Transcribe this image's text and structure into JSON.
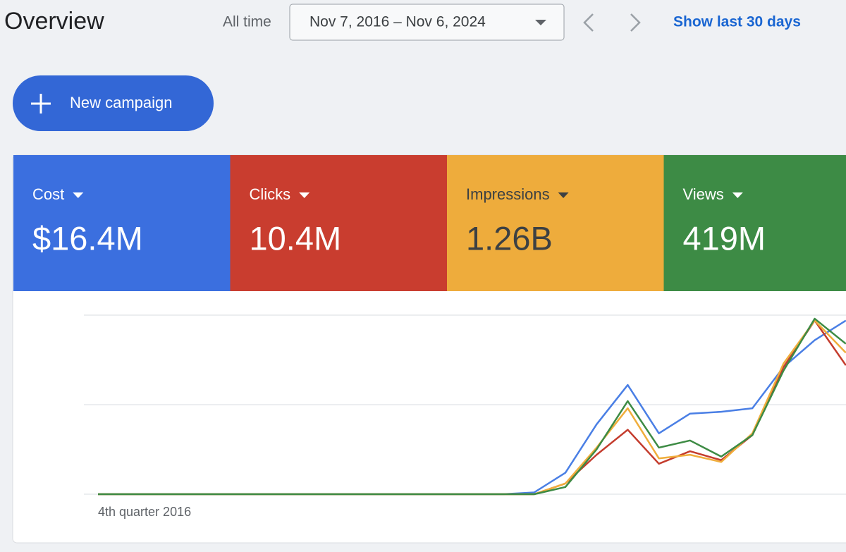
{
  "header": {
    "title": "Overview",
    "range_label": "All time",
    "date_range": "Nov 7, 2016 – Nov 6, 2024",
    "link": "Show last 30 days"
  },
  "button": {
    "label": "New campaign"
  },
  "chart_data": {
    "type": "line",
    "categories": [
      "4th quarter 2016",
      null,
      null,
      null,
      null,
      null,
      null,
      null,
      null,
      null,
      null,
      null,
      null,
      null,
      null,
      null,
      null,
      null,
      null,
      null,
      null,
      null,
      null,
      null,
      null
    ],
    "series": [
      {
        "name": "Cost",
        "total": "$16.4M",
        "color": "#3b6fdf",
        "line_color": "#4a7fe5",
        "values": [
          0,
          0,
          0,
          0,
          0,
          0,
          0,
          0,
          0,
          0,
          0,
          0,
          0,
          0,
          1,
          12,
          39,
          61,
          34,
          45,
          46,
          48,
          71,
          86,
          97
        ]
      },
      {
        "name": "Clicks",
        "total": "10.4M",
        "color": "#c93d2f",
        "line_color": "#c43c2d",
        "values": [
          0,
          0,
          0,
          0,
          0,
          0,
          0,
          0,
          0,
          0,
          0,
          0,
          0,
          0,
          0,
          6,
          22,
          36,
          17,
          24,
          19,
          33,
          71,
          97,
          72
        ]
      },
      {
        "name": "Impressions",
        "total": "1.26B",
        "color": "#eeac3c",
        "line_color": "#f0ae3c",
        "values": [
          0,
          0,
          0,
          0,
          0,
          0,
          0,
          0,
          0,
          0,
          0,
          0,
          0,
          0,
          0,
          6,
          26,
          48,
          20,
          22,
          18,
          34,
          73,
          97,
          79
        ]
      },
      {
        "name": "Views",
        "total": "419M",
        "color": "#3d8b45",
        "line_color": "#3d8b44",
        "values": [
          0,
          0,
          0,
          0,
          0,
          0,
          0,
          0,
          0,
          0,
          0,
          0,
          0,
          0,
          0,
          4,
          25,
          52,
          26,
          30,
          21,
          33,
          69,
          98,
          84
        ]
      }
    ],
    "ylim": [
      0,
      100
    ],
    "yticks": [
      0,
      50,
      100
    ],
    "grid": true
  }
}
